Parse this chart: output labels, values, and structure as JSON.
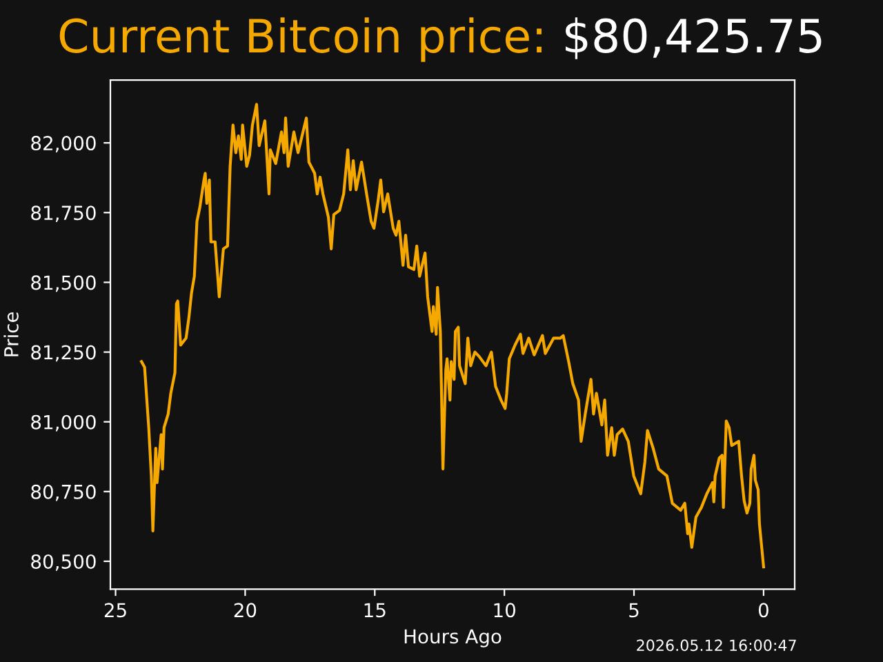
{
  "chart_data": {
    "type": "line",
    "title": "Current Bitcoin price:",
    "subtitle": "$80,425.75",
    "xlabel": "Hours Ago",
    "ylabel": "Price",
    "annotations": [
      "2026.05.12 16:00:47"
    ],
    "series": [
      {
        "color": "#f5a800",
        "x": [
          24.0,
          23.88,
          23.72,
          23.62,
          23.56,
          23.45,
          23.4,
          23.24,
          23.19,
          23.13,
          22.97,
          22.87,
          22.71,
          22.65,
          22.6,
          22.49,
          22.28,
          22.17,
          22.07,
          21.96,
          21.86,
          21.75,
          21.59,
          21.54,
          21.48,
          21.38,
          21.32,
          21.16,
          21.0,
          20.84,
          20.68,
          20.58,
          20.47,
          20.36,
          20.26,
          20.15,
          20.1,
          19.94,
          19.83,
          19.72,
          19.56,
          19.46,
          19.24,
          19.08,
          19.03,
          18.82,
          18.6,
          18.5,
          18.44,
          18.34,
          18.12,
          17.96,
          17.64,
          17.54,
          17.32,
          17.22,
          17.11,
          17.0,
          16.79,
          16.68,
          16.58,
          16.36,
          16.2,
          16.04,
          15.94,
          15.83,
          15.72,
          15.51,
          15.3,
          15.14,
          15.03,
          14.87,
          14.77,
          14.66,
          14.5,
          14.29,
          14.18,
          14.07,
          13.91,
          13.81,
          13.7,
          13.49,
          13.38,
          13.27,
          13.06,
          12.96,
          12.79,
          12.74,
          12.63,
          12.58,
          12.47,
          12.37,
          12.26,
          12.21,
          12.1,
          12.05,
          11.94,
          11.89,
          11.78,
          11.73,
          11.51,
          11.41,
          11.3,
          11.14,
          10.98,
          10.71,
          10.5,
          10.34,
          10.13,
          9.97,
          9.91,
          9.81,
          9.59,
          9.38,
          9.28,
          9.06,
          8.85,
          8.53,
          8.42,
          8.1,
          7.84,
          7.73,
          7.52,
          7.36,
          7.14,
          7.04,
          6.88,
          6.66,
          6.56,
          6.45,
          6.24,
          6.13,
          6.02,
          5.86,
          5.76,
          5.65,
          5.44,
          5.22,
          5.01,
          4.74,
          4.58,
          4.48,
          4.26,
          4.05,
          3.73,
          3.52,
          3.2,
          3.04,
          2.93,
          2.88,
          2.77,
          2.61,
          2.4,
          2.19,
          1.97,
          1.92,
          1.87,
          1.71,
          1.6,
          1.55,
          1.44,
          1.33,
          1.23,
          0.96,
          0.85,
          0.75,
          0.64,
          0.53,
          0.48,
          0.37,
          0.32,
          0.21,
          0.16,
          0.0
        ],
        "values": [
          81216,
          81196,
          80979,
          80806,
          80609,
          80905,
          80782,
          80954,
          80831,
          80979,
          81028,
          81102,
          81176,
          81423,
          81433,
          81275,
          81300,
          81374,
          81462,
          81522,
          81719,
          81768,
          81867,
          81891,
          81783,
          81867,
          81645,
          81645,
          81448,
          81620,
          81630,
          81916,
          82064,
          81965,
          82025,
          81941,
          82064,
          81916,
          81956,
          82064,
          82138,
          81990,
          82079,
          81817,
          81975,
          81926,
          82039,
          81965,
          82089,
          81916,
          82039,
          81965,
          82089,
          81931,
          81891,
          81817,
          81877,
          81817,
          81734,
          81620,
          81743,
          81758,
          81817,
          81975,
          81832,
          81936,
          81832,
          81931,
          81808,
          81719,
          81694,
          81793,
          81867,
          81753,
          81817,
          81694,
          81669,
          81719,
          81561,
          81669,
          81556,
          81546,
          81630,
          81522,
          81605,
          81448,
          81324,
          81413,
          81314,
          81482,
          81324,
          80831,
          81186,
          81226,
          81078,
          81216,
          81152,
          81324,
          81339,
          81201,
          81137,
          81300,
          81201,
          81250,
          81235,
          81201,
          81250,
          81127,
          81078,
          81048,
          81102,
          81226,
          81275,
          81314,
          81245,
          81300,
          81240,
          81309,
          81245,
          81300,
          81300,
          81309,
          81216,
          81137,
          81078,
          80930,
          81028,
          81152,
          81028,
          81102,
          80989,
          81078,
          80880,
          80979,
          80880,
          80954,
          80974,
          80930,
          80806,
          80742,
          80856,
          80969,
          80905,
          80831,
          80806,
          80708,
          80683,
          80708,
          80599,
          80634,
          80550,
          80658,
          80693,
          80742,
          80782,
          80713,
          80806,
          80870,
          80880,
          80693,
          81003,
          80979,
          80915,
          80930,
          80806,
          80717,
          80673,
          80708,
          80831,
          80880,
          80791,
          80757,
          80634,
          80480
        ]
      }
    ],
    "xlim": [
      25.2,
      -1.2
    ],
    "xticks": [
      0,
      5,
      10,
      15,
      20,
      25
    ],
    "ylim": [
      80400,
      82225
    ],
    "yticks": [
      {
        "value": 80500,
        "label": "80,500"
      },
      {
        "value": 80750,
        "label": "80,750"
      },
      {
        "value": 81000,
        "label": "81,000"
      },
      {
        "value": 81250,
        "label": "81,250"
      },
      {
        "value": 81500,
        "label": "81,500"
      },
      {
        "value": 81750,
        "label": "81,750"
      },
      {
        "value": 82000,
        "label": "82,000"
      }
    ],
    "grid": false,
    "legend": false,
    "marker": "none",
    "line_style": "solid"
  }
}
